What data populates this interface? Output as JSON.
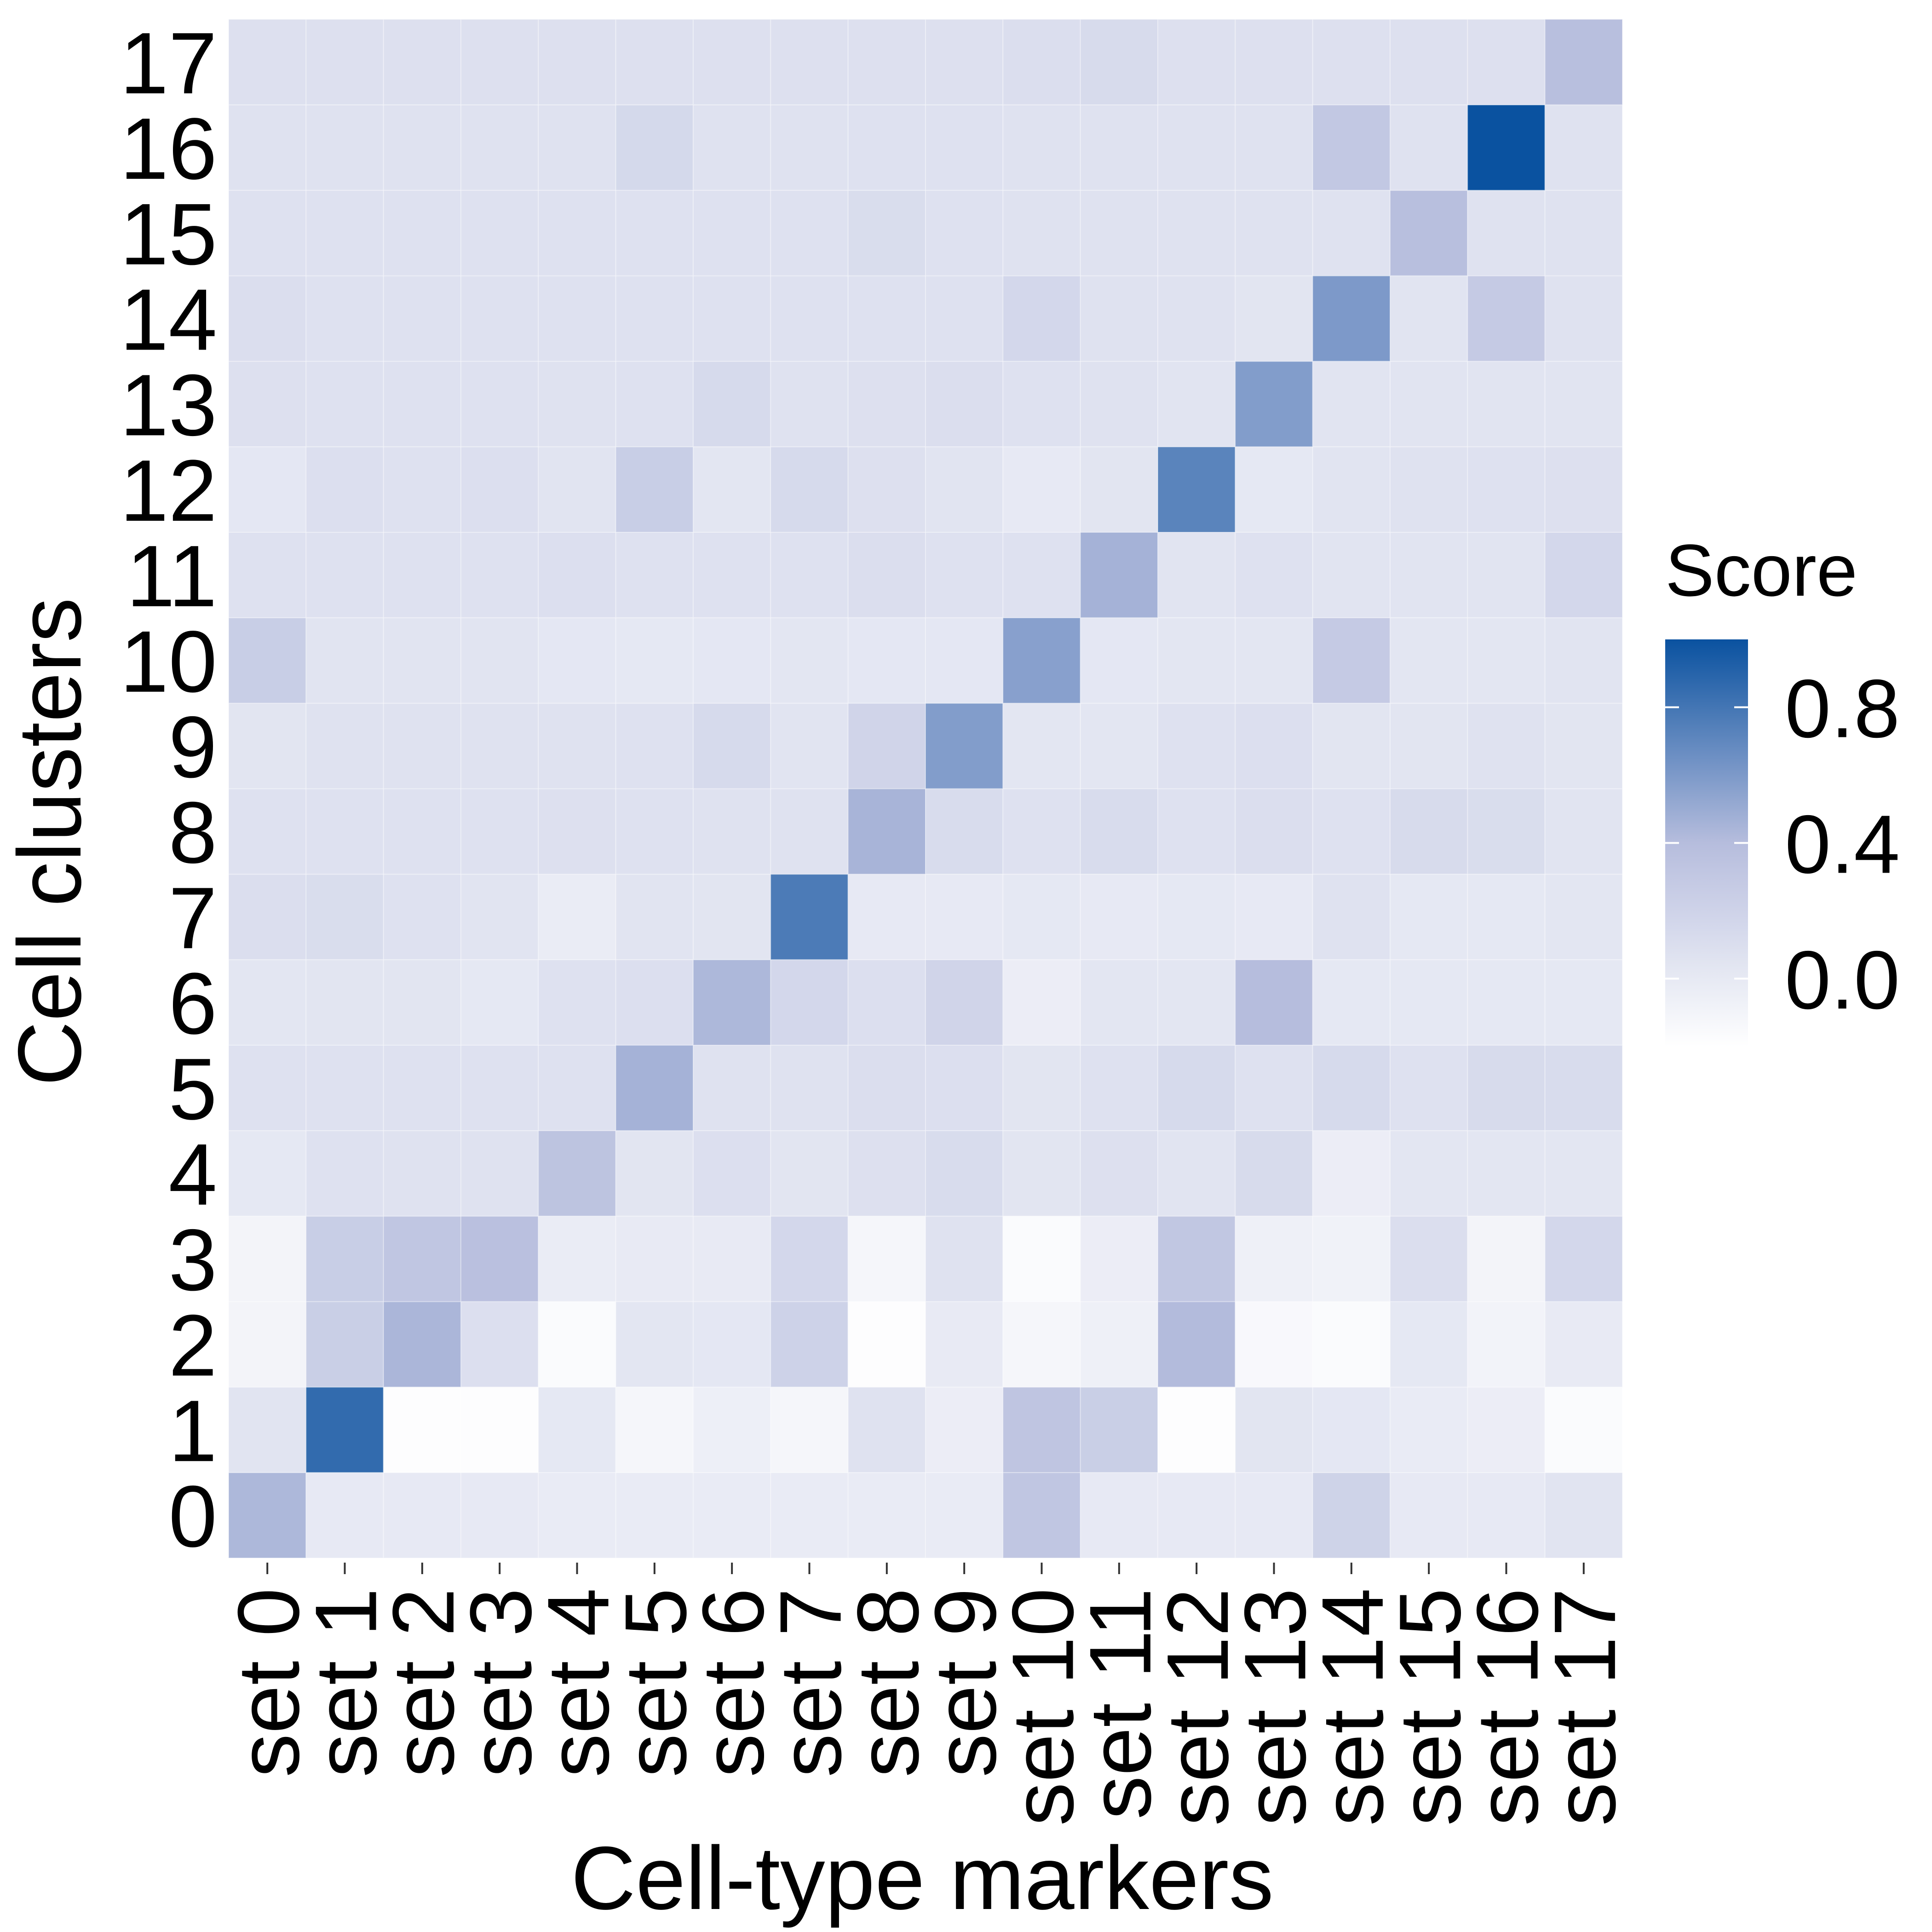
{
  "chart_data": {
    "type": "heatmap",
    "title": "",
    "xlabel": "Cell-type markers",
    "ylabel": "Cell clusters",
    "x_categories": [
      "set 0",
      "set 1",
      "set 2",
      "set 3",
      "set 4",
      "set 5",
      "set 6",
      "set 7",
      "set 8",
      "set 9",
      "set 10",
      "set 11",
      "set 12",
      "set 13",
      "set 14",
      "set 15",
      "set 16",
      "set 17"
    ],
    "y_categories": [
      "0",
      "1",
      "2",
      "3",
      "4",
      "5",
      "6",
      "7",
      "8",
      "9",
      "10",
      "11",
      "12",
      "13",
      "14",
      "15",
      "16",
      "17"
    ],
    "values": [
      [
        0.43,
        0.0,
        0.0,
        0.0,
        -0.02,
        -0.02,
        -0.02,
        -0.02,
        -0.02,
        -0.02,
        0.32,
        0.0,
        0.0,
        0.0,
        0.2,
        0.0,
        0.0,
        0.05
      ],
      [
        0.05,
        0.86,
        -0.18,
        -0.18,
        0.01,
        -0.12,
        -0.05,
        -0.12,
        0.06,
        -0.04,
        0.33,
        0.24,
        -0.18,
        0.04,
        0.02,
        -0.02,
        -0.04,
        -0.16
      ],
      [
        -0.1,
        0.24,
        0.44,
        0.09,
        -0.16,
        0.03,
        0.02,
        0.21,
        -0.18,
        -0.01,
        -0.12,
        -0.06,
        0.41,
        -0.14,
        -0.16,
        0.01,
        -0.09,
        -0.01
      ],
      [
        -0.1,
        0.25,
        0.32,
        0.37,
        -0.03,
        -0.01,
        -0.01,
        0.16,
        -0.12,
        0.06,
        -0.16,
        -0.04,
        0.31,
        -0.06,
        -0.08,
        0.1,
        -0.1,
        0.16
      ],
      [
        0.01,
        0.07,
        0.06,
        0.06,
        0.34,
        0.04,
        0.09,
        0.04,
        0.08,
        0.12,
        0.04,
        0.08,
        0.05,
        0.13,
        -0.04,
        0.03,
        0.03,
        0.03
      ],
      [
        0.07,
        0.07,
        0.07,
        0.07,
        0.07,
        0.46,
        0.06,
        0.06,
        0.1,
        0.09,
        0.04,
        0.07,
        0.14,
        0.07,
        0.14,
        0.07,
        0.13,
        0.12
      ],
      [
        0.03,
        0.04,
        0.04,
        0.01,
        0.07,
        0.09,
        0.43,
        0.16,
        0.09,
        0.19,
        -0.04,
        0.03,
        0.03,
        0.4,
        0.01,
        0.01,
        0.01,
        0.01
      ],
      [
        0.1,
        0.11,
        0.07,
        0.05,
        -0.03,
        0.05,
        0.04,
        0.77,
        0.0,
        0.0,
        0.01,
        0.0,
        0.01,
        0.0,
        0.06,
        0.01,
        0.01,
        0.03
      ],
      [
        0.07,
        0.07,
        0.07,
        0.07,
        0.08,
        0.07,
        0.06,
        0.06,
        0.45,
        0.12,
        0.07,
        0.12,
        0.07,
        0.1,
        0.07,
        0.13,
        0.11,
        0.05
      ],
      [
        0.04,
        0.06,
        0.06,
        0.06,
        0.06,
        0.07,
        0.14,
        0.05,
        0.19,
        0.58,
        0.03,
        0.03,
        0.07,
        0.09,
        0.04,
        0.04,
        0.06,
        0.04
      ],
      [
        0.25,
        0.05,
        0.05,
        0.05,
        0.02,
        0.01,
        0.02,
        0.03,
        0.02,
        0.02,
        0.56,
        0.02,
        0.03,
        0.03,
        0.28,
        0.03,
        0.03,
        0.05
      ],
      [
        0.07,
        0.07,
        0.07,
        0.07,
        0.09,
        0.07,
        0.07,
        0.07,
        0.1,
        0.07,
        0.07,
        0.46,
        0.05,
        0.07,
        0.05,
        0.05,
        0.05,
        0.16
      ],
      [
        0.02,
        0.09,
        0.07,
        0.09,
        0.05,
        0.25,
        0.03,
        0.14,
        0.08,
        0.05,
        0.0,
        0.04,
        0.72,
        0.01,
        0.05,
        0.06,
        0.07,
        0.08
      ],
      [
        0.08,
        0.07,
        0.07,
        0.07,
        0.06,
        0.07,
        0.14,
        0.06,
        0.08,
        0.1,
        0.07,
        0.06,
        0.05,
        0.58,
        0.05,
        0.05,
        0.05,
        0.05
      ],
      [
        0.1,
        0.07,
        0.07,
        0.07,
        0.07,
        0.07,
        0.07,
        0.07,
        0.07,
        0.07,
        0.16,
        0.06,
        0.06,
        0.04,
        0.6,
        0.05,
        0.28,
        0.06
      ],
      [
        0.07,
        0.07,
        0.07,
        0.07,
        0.07,
        0.07,
        0.07,
        0.07,
        0.11,
        0.07,
        0.06,
        0.06,
        0.06,
        0.06,
        0.06,
        0.38,
        0.06,
        0.06
      ],
      [
        0.06,
        0.06,
        0.06,
        0.06,
        0.06,
        0.15,
        0.06,
        0.06,
        0.07,
        0.07,
        0.06,
        0.06,
        0.06,
        0.06,
        0.3,
        0.06,
        1.0,
        0.06
      ],
      [
        0.08,
        0.08,
        0.08,
        0.08,
        0.08,
        0.08,
        0.08,
        0.08,
        0.08,
        0.08,
        0.1,
        0.13,
        0.08,
        0.08,
        0.08,
        0.08,
        0.08,
        0.38
      ]
    ],
    "color_range": [
      -0.2,
      1.0
    ],
    "colors": {
      "low": "#ffffff",
      "mid": "#b6bddd",
      "high": "#0a52a0"
    },
    "legend": {
      "title": "Score",
      "placement": "right",
      "ticks": [
        0.0,
        0.4,
        0.8
      ],
      "tick_labels": [
        "0.0",
        "0.4",
        "0.8"
      ]
    },
    "grid": false
  }
}
